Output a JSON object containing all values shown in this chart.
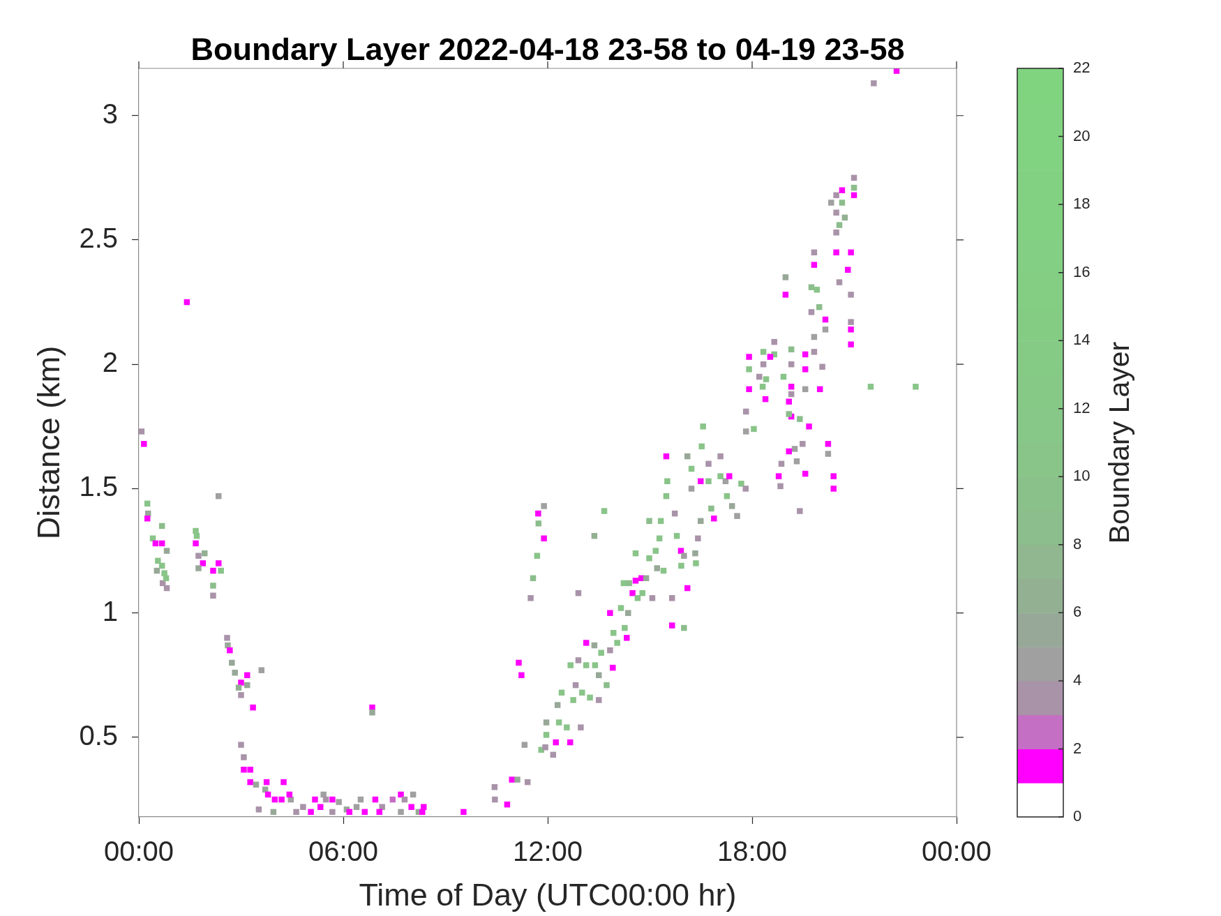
{
  "chart_data": {
    "type": "scatter",
    "title": "Boundary Layer 2022-04-18 23-58 to 04-19 23-58",
    "xlabel": "Time of Day (UTC00:00 hr)",
    "ylabel": "Distance (km)",
    "clabel": "Boundary Layer",
    "xlim": [
      0,
      24
    ],
    "xticks": [
      {
        "value": 0,
        "label": "00:00"
      },
      {
        "value": 6,
        "label": "06:00"
      },
      {
        "value": 12,
        "label": "12:00"
      },
      {
        "value": 18,
        "label": "18:00"
      },
      {
        "value": 24,
        "label": "00:00"
      }
    ],
    "ylim": [
      0.18,
      3.19
    ],
    "yticks": [
      0.5,
      1,
      1.5,
      2,
      2.5,
      3
    ],
    "clim": [
      0,
      22
    ],
    "cticks": [
      0,
      2,
      4,
      6,
      8,
      10,
      12,
      14,
      16,
      18,
      20,
      22
    ],
    "grid": false,
    "legend": false,
    "marker": "square",
    "x": [
      0.08,
      0.15,
      0.25,
      0.27,
      0.25,
      0.68,
      0.41,
      0.49,
      0.68,
      0.56,
      0.68,
      0.82,
      0.75,
      0.53,
      0.7,
      0.82,
      0.8,
      1.41,
      1.67,
      1.7,
      1.67,
      1.75,
      1.93,
      1.88,
      1.75,
      2.18,
      2.34,
      2.41,
      2.18,
      2.18,
      2.34,
      2.59,
      2.61,
      2.67,
      2.73,
      2.82,
      3.18,
      3.18,
      3.0,
      2.93,
      3.0,
      3.6,
      3.35,
      6.85,
      6.85,
      3.0,
      3.08,
      3.08,
      3.27,
      3.27,
      3.44,
      3.75,
      4.25,
      3.71,
      3.79,
      3.52,
      3.99,
      4.19,
      3.95,
      4.46,
      4.42,
      4.62,
      4.82,
      5.05,
      5.17,
      5.42,
      5.49,
      5.33,
      5.68,
      5.68,
      5.87,
      6.1,
      6.18,
      6.39,
      6.51,
      6.63,
      6.94,
      7.14,
      7.06,
      7.45,
      7.69,
      8.05,
      7.8,
      8.0,
      7.69,
      8.21,
      8.36,
      8.32,
      9.53,
      10.44,
      10.45,
      10.81,
      10.95,
      11.11,
      11.41,
      11.15,
      11.23,
      11.32,
      11.5,
      11.57,
      11.69,
      11.72,
      11.73,
      11.89,
      11.89,
      12.9,
      13.37,
      13.66,
      11.81,
      11.93,
      11.96,
      11.96,
      12.24,
      12.16,
      12.29,
      12.33,
      12.56,
      12.66,
      12.41,
      12.67,
      12.75,
      12.82,
      12.9,
      12.97,
      13.01,
      13.13,
      13.13,
      13.24,
      13.37,
      13.39,
      13.5,
      13.5,
      13.57,
      13.73,
      13.83,
      13.83,
      13.91,
      13.93,
      14.04,
      14.15,
      14.23,
      14.26,
      14.32,
      14.36,
      14.39,
      14.49,
      14.58,
      14.58,
      14.64,
      14.75,
      14.78,
      14.89,
      14.98,
      15.07,
      15.17,
      15.21,
      15.28,
      15.32,
      15.4,
      14.98,
      15.48,
      15.51,
      15.48,
      15.65,
      15.65,
      15.73,
      15.79,
      15.91,
      15.92,
      16.0,
      16.0,
      16.1,
      16.1,
      16.22,
      16.22,
      16.33,
      16.35,
      16.41,
      16.49,
      16.49,
      16.52,
      16.56,
      16.72,
      16.72,
      16.8,
      16.88,
      17.07,
      17.07,
      17.22,
      17.26,
      17.33,
      17.41,
      17.56,
      17.68,
      17.81,
      22.24,
      21.57,
      20.99,
      20.99,
      20.99,
      20.64,
      20.64,
      20.47,
      20.32,
      20.47,
      20.56,
      20.72,
      20.47,
      20.47,
      20.9,
      19.82,
      19.82,
      20.81,
      20.56,
      20.9,
      18.98,
      18.98,
      19.74,
      19.9,
      19.74,
      19.97,
      20.15,
      20.15,
      20.9,
      20.9,
      20.9,
      19.82,
      19.82,
      19.56,
      20.06,
      19.56,
      19.56,
      19.99,
      19.15,
      19.15,
      19.15,
      19.15,
      19.08,
      19.15,
      19.08,
      18.92,
      18.65,
      18.65,
      18.53,
      18.33,
      18.41,
      18.33,
      18.21,
      18.31,
      17.91,
      17.91,
      17.91,
      18.39,
      17.82,
      17.82,
      18.05,
      19.4,
      19.67,
      19.48,
      19.25,
      19.08,
      19.31,
      20.23,
      20.23,
      19.56,
      20.39,
      20.39,
      18.86,
      18.78,
      18.83,
      19.4,
      21.48,
      22.8
    ],
    "values": [
      1.73,
      1.68,
      1.44,
      1.4,
      1.38,
      1.35,
      1.3,
      1.28,
      1.28,
      1.21,
      1.19,
      1.25,
      1.16,
      1.17,
      1.12,
      1.1,
      1.14,
      2.25,
      1.33,
      1.31,
      1.28,
      1.23,
      1.24,
      1.2,
      1.18,
      1.17,
      1.2,
      1.17,
      1.11,
      1.07,
      1.47,
      0.9,
      0.87,
      0.85,
      0.8,
      0.76,
      0.75,
      0.71,
      0.72,
      0.7,
      0.67,
      0.77,
      0.62,
      0.62,
      0.6,
      0.47,
      0.42,
      0.37,
      0.37,
      0.32,
      0.31,
      0.32,
      0.32,
      0.29,
      0.27,
      0.21,
      0.25,
      0.25,
      0.2,
      0.25,
      0.27,
      0.2,
      0.22,
      0.2,
      0.25,
      0.27,
      0.25,
      0.22,
      0.25,
      0.2,
      0.24,
      0.21,
      0.2,
      0.22,
      0.25,
      0.2,
      0.25,
      0.22,
      0.2,
      0.25,
      0.27,
      0.27,
      0.25,
      0.22,
      0.2,
      0.2,
      0.22,
      0.2,
      0.2,
      0.3,
      0.25,
      0.23,
      0.33,
      0.33,
      0.32,
      0.8,
      0.75,
      0.47,
      1.06,
      1.14,
      1.23,
      1.4,
      1.36,
      1.43,
      1.3,
      1.08,
      1.31,
      1.41,
      0.45,
      0.46,
      0.51,
      0.56,
      0.48,
      0.43,
      0.63,
      0.56,
      0.54,
      0.48,
      0.68,
      0.79,
      0.65,
      0.71,
      0.81,
      0.54,
      0.68,
      0.88,
      0.79,
      0.66,
      0.87,
      0.79,
      0.75,
      0.65,
      0.84,
      0.71,
      1.0,
      0.85,
      0.78,
      0.92,
      0.88,
      1.02,
      1.12,
      0.94,
      0.9,
      1.0,
      1.12,
      1.08,
      1.13,
      1.24,
      1.06,
      1.14,
      1.08,
      1.14,
      1.22,
      1.06,
      1.25,
      1.18,
      1.3,
      1.37,
      1.17,
      1.37,
      1.63,
      1.53,
      1.47,
      1.06,
      0.95,
      1.4,
      1.31,
      1.25,
      1.19,
      1.23,
      0.94,
      1.1,
      1.63,
      1.58,
      1.5,
      1.24,
      1.2,
      1.3,
      1.37,
      1.53,
      1.67,
      1.75,
      1.6,
      1.53,
      1.42,
      1.38,
      1.63,
      1.55,
      1.53,
      1.47,
      1.55,
      1.43,
      1.39,
      1.52,
      1.5,
      3.18,
      3.13,
      2.75,
      2.71,
      2.68,
      2.7,
      2.65,
      2.68,
      2.65,
      2.61,
      2.56,
      2.59,
      2.53,
      2.45,
      2.45,
      2.45,
      2.4,
      2.38,
      2.33,
      2.28,
      2.35,
      2.28,
      2.31,
      2.3,
      2.21,
      2.23,
      2.18,
      2.14,
      2.17,
      2.14,
      2.08,
      2.11,
      2.05,
      2.04,
      1.99,
      1.98,
      1.9,
      1.9,
      2.06,
      2.0,
      1.91,
      1.88,
      1.85,
      1.79,
      1.8,
      1.95,
      2.09,
      2.04,
      2.03,
      2.05,
      1.94,
      2.0,
      1.95,
      1.91,
      2.03,
      1.98,
      1.9,
      1.86,
      1.81,
      1.73,
      1.74,
      1.78,
      1.75,
      1.68,
      1.66,
      1.65,
      1.61,
      1.68,
      1.64,
      1.56,
      1.55,
      1.5,
      1.6,
      1.55,
      1.51,
      1.41,
      1.91,
      1.91
    ],
    "cvalues": [
      3,
      1.5,
      10,
      5,
      1.5,
      8,
      10,
      1.5,
      1.5,
      10,
      10,
      5,
      10,
      5,
      3,
      3,
      10,
      1.5,
      10,
      10,
      1.5,
      3,
      6,
      1.5,
      5,
      1.5,
      1.5,
      10,
      8,
      3,
      4.5,
      3,
      5,
      1.5,
      5,
      5,
      1.5,
      5,
      1.5,
      6,
      3,
      4.5,
      1.5,
      1.5,
      5,
      3,
      3,
      1.5,
      1.5,
      1.5,
      5,
      1.5,
      1.5,
      5,
      1.5,
      3,
      1.5,
      1.5,
      5,
      4.5,
      1.5,
      3,
      3,
      1.5,
      1.5,
      4.5,
      3,
      1.5,
      1.5,
      3,
      4.5,
      5,
      1.5,
      4.5,
      4.5,
      1.5,
      1.5,
      3,
      1.5,
      2.5,
      1.5,
      4.5,
      3,
      1.5,
      4.5,
      5,
      1.5,
      1.5,
      1.5,
      3,
      3,
      1.5,
      1.5,
      5,
      3,
      1.5,
      1.5,
      4.5,
      3,
      8,
      10,
      1.5,
      8,
      4.5,
      1.5,
      3,
      6,
      10,
      10,
      3,
      10,
      5,
      1.5,
      3,
      5,
      10,
      10,
      1.5,
      10,
      10,
      10,
      3,
      3,
      3,
      10,
      1.5,
      10,
      10,
      5,
      10,
      5,
      3,
      10,
      8,
      1.5,
      3,
      1.5,
      10,
      10,
      10,
      10,
      10,
      1.5,
      5,
      8,
      1.5,
      1.5,
      10,
      10,
      1.5,
      10,
      5,
      10,
      3,
      10,
      5,
      10,
      10,
      10,
      8,
      1.5,
      10,
      10,
      3,
      1.5,
      3,
      10,
      1.5,
      10,
      4.5,
      8,
      1.5,
      5,
      10,
      4.5,
      5,
      10,
      3,
      5,
      1.5,
      10,
      10,
      3,
      10,
      8,
      1.5,
      3,
      10,
      4.5,
      10,
      1.5,
      5,
      4.5,
      10,
      3,
      1.5,
      3,
      3,
      8,
      1.5,
      1.5,
      8,
      3,
      4.5,
      3,
      8,
      6,
      3,
      1.5,
      1.5,
      3,
      1.5,
      1.5,
      3,
      3,
      5,
      1.5,
      8,
      10,
      3,
      8,
      1.5,
      4.5,
      3,
      1.5,
      1.5,
      4.5,
      3,
      1.5,
      3,
      1.5,
      4.5,
      1.5,
      8,
      3,
      1.5,
      3,
      1.5,
      1.5,
      8,
      10,
      3,
      10,
      1.5,
      10,
      10,
      3,
      3,
      10,
      1.5,
      10,
      1.5,
      1.5,
      3,
      4.5,
      10,
      8,
      1.5,
      3,
      4.5,
      1.5,
      4.5,
      1.5,
      4.5,
      1.5,
      1.5,
      1.5,
      3,
      1.5,
      3,
      3,
      10,
      10
    ]
  }
}
